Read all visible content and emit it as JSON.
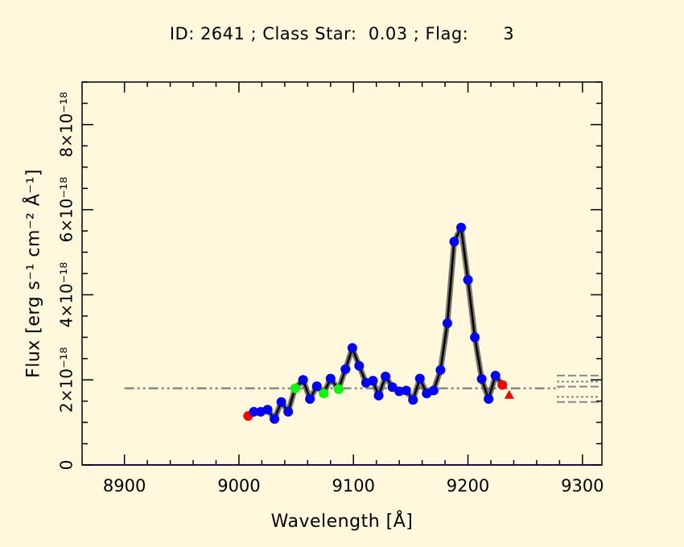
{
  "chart_data": {
    "type": "line",
    "title": "ID: 2641 ; Class Star:  0.03 ; Flag:      3",
    "xlabel": "Wavelength [Å]",
    "ylabel": "Flux [erg s⁻¹ cm⁻² Å⁻¹]",
    "xlim": [
      8863,
      9317
    ],
    "ylim": [
      0,
      9e-18
    ],
    "x_ticks": [
      {
        "value": 8900,
        "label": "8900"
      },
      {
        "value": 9000,
        "label": "9000"
      },
      {
        "value": 9100,
        "label": "9100"
      },
      {
        "value": 9200,
        "label": "9200"
      },
      {
        "value": 9300,
        "label": "9300"
      }
    ],
    "y_ticks": [
      {
        "value": 0,
        "label": "0"
      },
      {
        "value": 2e-18,
        "label": "2×10⁻¹⁸"
      },
      {
        "value": 4e-18,
        "label": "4×10⁻¹⁸"
      },
      {
        "value": 6e-18,
        "label": "6×10⁻¹⁸"
      },
      {
        "value": 8e-18,
        "label": "8×10⁻¹⁸"
      }
    ],
    "continuum_level": 1.8e-18,
    "continuum_x": [
      8900,
      9280
    ],
    "side_lines": [
      1.48e-18,
      1.6e-18,
      1.84e-18,
      1.96e-18,
      2.1e-18
    ],
    "series": [
      {
        "name": "spectrum",
        "x": [
          9008,
          9013,
          9019,
          9025,
          9031,
          9037,
          9043,
          9049,
          9056,
          9062,
          9068,
          9074,
          9080,
          9087,
          9093,
          9099,
          9105,
          9111,
          9117,
          9122,
          9128,
          9134,
          9140,
          9146,
          9152,
          9158,
          9164,
          9170,
          9176,
          9182,
          9188,
          9194,
          9200,
          9206,
          9212,
          9218,
          9224,
          9230
        ],
        "y": [
          1.15e-18,
          1.25e-18,
          1.25e-18,
          1.3e-18,
          1.08e-18,
          1.48e-18,
          1.25e-18,
          1.8e-18,
          2e-18,
          1.55e-18,
          1.85e-18,
          1.68e-18,
          2.03e-18,
          1.78e-18,
          2.25e-18,
          2.75e-18,
          2.33e-18,
          1.93e-18,
          1.98e-18,
          1.63e-18,
          2.08e-18,
          1.83e-18,
          1.73e-18,
          1.75e-18,
          1.53e-18,
          2.03e-18,
          1.68e-18,
          1.75e-18,
          2.23e-18,
          3.33e-18,
          5.25e-18,
          5.58e-18,
          4.35e-18,
          3e-18,
          2.02e-18,
          1.55e-18,
          2.1e-18,
          1.88e-18
        ],
        "point_colors": [
          "#ff0000",
          "#0000ff",
          "#0000ff",
          "#0000ff",
          "#0000ff",
          "#0000ff",
          "#0000ff",
          "#00ff00",
          "#0000ff",
          "#0000ff",
          "#0000ff",
          "#00ff00",
          "#0000ff",
          "#00ff00",
          "#0000ff",
          "#0000ff",
          "#0000ff",
          "#0000ff",
          "#0000ff",
          "#0000ff",
          "#0000ff",
          "#0000ff",
          "#0000ff",
          "#0000ff",
          "#0000ff",
          "#0000ff",
          "#0000ff",
          "#0000ff",
          "#0000ff",
          "#0000ff",
          "#0000ff",
          "#0000ff",
          "#0000ff",
          "#0000ff",
          "#0000ff",
          "#0000ff",
          "#0000ff",
          "#ff0000"
        ]
      }
    ],
    "end_marker": {
      "x": 9236,
      "y": 1.65e-18,
      "color": "#ff0000"
    },
    "colors": {
      "background": "#fff8dc",
      "axis": "#000000",
      "spectrum_line": "#000000",
      "error_band": "#555555",
      "continuum": "#888888",
      "baseline": "#9b30ff"
    }
  }
}
